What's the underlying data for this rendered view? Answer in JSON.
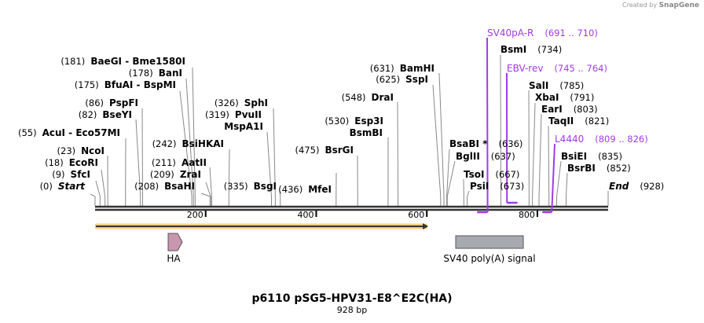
{
  "credit": {
    "prefix": "Created by",
    "brand": "SnapGene"
  },
  "sequence": {
    "name": "p6110 pSG5-HPV31-E8^E2C(HA)",
    "length_label": "928 bp",
    "length": 928
  },
  "ticks": [
    "200",
    "400",
    "600",
    "800"
  ],
  "enzymes": [
    {
      "name": "Start",
      "pos": 0,
      "italic": true
    },
    {
      "name": "SfcI",
      "pos": 9
    },
    {
      "name": "EcoRI",
      "pos": 18
    },
    {
      "name": "NcoI",
      "pos": 23
    },
    {
      "name": "AcuI  - Eco57MI",
      "pos": 55
    },
    {
      "name": "BseYI",
      "pos": 82
    },
    {
      "name": "PspFI",
      "pos": 86
    },
    {
      "name": "BfuAI  - BspMI",
      "pos": 175
    },
    {
      "name": "BanI",
      "pos": 178
    },
    {
      "name": "BaeGI  - Bme1580I",
      "pos": 181
    },
    {
      "name": "BsaHI",
      "pos": 208
    },
    {
      "name": "ZraI",
      "pos": 209
    },
    {
      "name": "AatII",
      "pos": 211
    },
    {
      "name": "BsiHKAI",
      "pos": 242
    },
    {
      "name": "SphI",
      "pos": 326
    },
    {
      "name": "PvuII",
      "pos": 319
    },
    {
      "name": "MspA1I"
    },
    {
      "name": "BsgI",
      "pos": 335
    },
    {
      "name": "MfeI",
      "pos": 436
    },
    {
      "name": "BsrGI",
      "pos": 475
    },
    {
      "name": "Esp3I",
      "pos": 530
    },
    {
      "name": "BsmBI"
    },
    {
      "name": "DraI",
      "pos": 548
    },
    {
      "name": "SspI",
      "pos": 625
    },
    {
      "name": "BamHI",
      "pos": 631
    },
    {
      "name": "BsaBI *",
      "pos": 636
    },
    {
      "name": "BglII",
      "pos": 637
    },
    {
      "name": "TsoI",
      "pos": 667
    },
    {
      "name": "PsiI",
      "pos": 673
    },
    {
      "name": "BsmI",
      "pos": 734
    },
    {
      "name": "SalI",
      "pos": 785
    },
    {
      "name": "XbaI",
      "pos": 791
    },
    {
      "name": "EarI",
      "pos": 803
    },
    {
      "name": "TaqII",
      "pos": 821
    },
    {
      "name": "BsiEI",
      "pos": 835
    },
    {
      "name": "BsrBI",
      "pos": 852
    },
    {
      "name": "End",
      "pos": 928,
      "italic": true
    }
  ],
  "primers": [
    {
      "name": "SV40pA-R",
      "range": "(691 .. 710)",
      "start": 691,
      "end": 710,
      "strand": "reverse"
    },
    {
      "name": "EBV-rev",
      "range": "(745 .. 764)",
      "start": 745,
      "end": 764,
      "strand": "forward"
    },
    {
      "name": "L4440",
      "range": "(809 .. 826)",
      "start": 809,
      "end": 826,
      "strand": "reverse"
    }
  ],
  "features": [
    {
      "name": "",
      "start": 1,
      "end": 604,
      "type": "orf",
      "color": "#f5c26b"
    },
    {
      "name": "HA",
      "type": "tag",
      "color": "#c996b0"
    },
    {
      "name": "SV40 poly(A) signal",
      "type": "polyA_signal",
      "color": "#a6aab0"
    }
  ],
  "colors": {
    "primer": "#a13ae8",
    "backbone": "#333333"
  }
}
